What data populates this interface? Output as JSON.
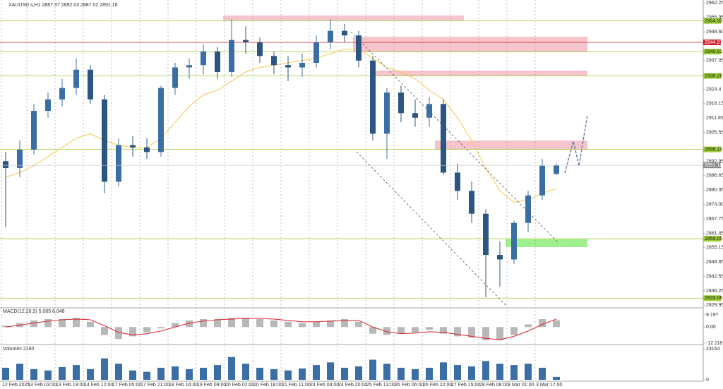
{
  "chart_data": {
    "type": "candlestick",
    "title": "XAUUSD.s,H1 2887.37 2892.03 2887.02 2891.16",
    "up_color": "#3c6ea6",
    "down_color": "#2b5583",
    "open": [
      2893,
      2890,
      2898,
      2915,
      2920,
      2925,
      2933,
      2920,
      2884,
      2900,
      2899,
      2897,
      2925,
      2934,
      2935,
      2941,
      2932,
      2946,
      2945,
      2939,
      2935,
      2934,
      2936,
      2945,
      2950,
      2948,
      2937,
      2905,
      2923,
      2914,
      2912,
      2918,
      2888,
      2880,
      2870,
      2852,
      2850,
      2866,
      2878,
      2887.37
    ],
    "high": [
      2897,
      2902,
      2918,
      2923,
      2929,
      2938,
      2935,
      2922,
      2903,
      2904,
      2903,
      2926,
      2936,
      2938,
      2944,
      2943,
      2955,
      2952,
      2947,
      2941,
      2939,
      2940,
      2948,
      2955,
      2953,
      2950,
      2939,
      2925,
      2926,
      2920,
      2921,
      2920,
      2892,
      2884,
      2872,
      2858,
      2867,
      2880,
      2894,
      2892.03
    ],
    "low": [
      2864,
      2886,
      2896,
      2912,
      2917,
      2922,
      2918,
      2879,
      2882,
      2895,
      2894,
      2895,
      2922,
      2929,
      2931,
      2929,
      2930,
      2940,
      2936,
      2931,
      2928,
      2930,
      2934,
      2942,
      2945,
      2934,
      2902,
      2894,
      2910,
      2908,
      2908,
      2887,
      2876,
      2866,
      2833.5,
      2838,
      2848,
      2862,
      2876,
      2887.02
    ],
    "close": [
      2890,
      2898,
      2915,
      2920,
      2925,
      2933,
      2920,
      2884,
      2900,
      2899,
      2897,
      2925,
      2934,
      2935,
      2941,
      2932,
      2946,
      2945,
      2939,
      2935,
      2934,
      2936,
      2945,
      2950,
      2948,
      2937,
      2905,
      2923,
      2914,
      2912,
      2918,
      2888,
      2880,
      2870,
      2852,
      2850,
      2866,
      2878,
      2891,
      2891.16
    ],
    "ma": {
      "color": "#f2c94c",
      "values": [
        2886,
        2888,
        2891,
        2895,
        2899,
        2903,
        2905,
        2902,
        2900,
        2899,
        2899,
        2903,
        2910,
        2917,
        2922,
        2924,
        2928,
        2932,
        2934,
        2935,
        2936,
        2937,
        2938,
        2940,
        2942,
        2942,
        2938,
        2934,
        2932,
        2929,
        2924,
        2920,
        2912,
        2902,
        2890,
        2880,
        2875,
        2876,
        2879,
        2881
      ]
    },
    "ylim": [
      2828.84,
      2963.49
    ],
    "yticks": [
      2962.25,
      2955.95,
      {
        "value": 2949.6,
        "label": "2949.60"
      },
      2937.05,
      2924.4,
      2918.15,
      2911.85,
      2905.55,
      2892.95,
      2886.65,
      2880.35,
      {
        "value": 2874,
        "label": "2874.00"
      },
      2867.75,
      2861.45,
      2855.15,
      2848.85,
      2842.55,
      2836.25,
      2829.95
    ],
    "xticks": [
      {
        "value": -0.3,
        "label": "12 Feb 2025"
      },
      {
        "value": 1.5,
        "label": "13 Feb 03:00"
      },
      {
        "value": 3.5,
        "label": "13 Feb 19:00"
      },
      {
        "value": 5.5,
        "label": "14 Feb 12:00"
      },
      {
        "value": 7.5,
        "label": "17 Feb 05:00"
      },
      {
        "value": 9.5,
        "label": "17 Feb 21:00"
      },
      {
        "value": 11.5,
        "label": "18 Feb 16:00"
      },
      {
        "value": 13.5,
        "label": "19 Feb 09:00"
      },
      {
        "value": 15.5,
        "label": "20 Feb 02:00"
      },
      {
        "value": 17.5,
        "label": "20 Feb 18:00"
      },
      {
        "value": 19.5,
        "label": "21 Feb 11:00"
      },
      {
        "value": 21.5,
        "label": "24 Feb 04:00"
      },
      {
        "value": 23.5,
        "label": "24 Feb 20:00"
      },
      {
        "value": 25.5,
        "label": "25 Feb 13:00"
      },
      {
        "value": 27.5,
        "label": "26 Feb 06:00"
      },
      {
        "value": 29.5,
        "label": "26 Feb 22:00"
      },
      {
        "value": 31.5,
        "label": "27 Feb 15:00"
      },
      {
        "value": 33.5,
        "label": "28 Feb 08:00"
      },
      {
        "value": 35.5,
        "label": "3 Mar 01:00"
      },
      {
        "value": 37.5,
        "label": "3 Mar 17:00"
      }
    ],
    "levels": [
      {
        "value": 2954.33,
        "color": "#9acd32"
      },
      {
        "value": 2944.97,
        "color": "#d2202a"
      },
      {
        "value": 2940.91,
        "color": "#9acd32"
      },
      {
        "value": 2930.28,
        "color": "#9acd32"
      },
      {
        "value": 2898.14,
        "color": "#9acd32"
      },
      {
        "value": 2859.05,
        "color": "#9acd32"
      },
      {
        "value": 2833.08,
        "color": "#9acd32"
      }
    ],
    "macd": {
      "title": "MACD(12,26,9) 5.085 6.048",
      "color": "#b8b8b8",
      "signal_color": "#e0202a",
      "histogram": [
        1,
        3,
        5,
        6,
        6,
        7,
        4,
        -6,
        -9,
        -7,
        -4,
        -1,
        3,
        5,
        6,
        6,
        7,
        7,
        6,
        5,
        4,
        3,
        4,
        5,
        6,
        4,
        -5,
        -6,
        -5,
        -4,
        -2,
        -5,
        -7,
        -8,
        -10,
        -10,
        -6,
        2,
        6,
        5.085
      ],
      "signal": [
        0,
        1.5,
        3,
        4.5,
        5.5,
        6,
        5.5,
        1,
        -4,
        -6,
        -5,
        -3,
        0,
        3,
        4.5,
        5.5,
        6,
        6.5,
        6.5,
        6,
        5,
        4,
        4,
        4.5,
        5,
        5,
        0,
        -3.5,
        -5,
        -4.5,
        -3.5,
        -4,
        -5.5,
        -7,
        -8.5,
        -9.5,
        -7,
        -3,
        2,
        6.048
      ],
      "ylim": [
        -12.118,
        9.197
      ],
      "yticks": [
        9.197,
        {
          "value": 0,
          "label": "0.00"
        },
        -12.118
      ]
    },
    "volume": {
      "title": "Volumes 2160",
      "color": "#3a6ea5",
      "values": [
        9000,
        12000,
        8000,
        7000,
        9500,
        11000,
        8000,
        16000,
        12000,
        7000,
        6000,
        9000,
        10000,
        8000,
        9000,
        11000,
        17000,
        12000,
        9000,
        8000,
        7000,
        8500,
        11000,
        13000,
        9000,
        10000,
        15000,
        12000,
        9000,
        8000,
        9000,
        13000,
        11000,
        10000,
        14000,
        12000,
        11000,
        12000,
        9000,
        2160
      ],
      "ylim": [
        0,
        23164
      ],
      "yticks": [
        23164,
        0
      ]
    }
  }
}
